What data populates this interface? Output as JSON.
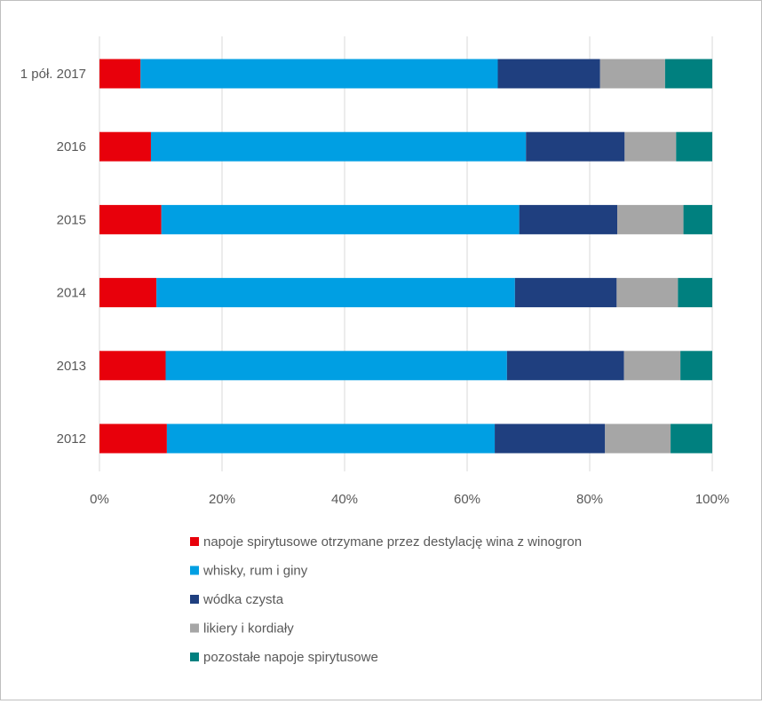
{
  "chart_data": {
    "type": "bar",
    "orientation": "horizontal",
    "stacked": "percent",
    "title": "",
    "xlabel": "",
    "ylabel": "",
    "xlim": [
      0,
      100
    ],
    "x_ticks": [
      "0%",
      "20%",
      "40%",
      "60%",
      "80%",
      "100%"
    ],
    "categories": [
      "1 pół. 2017",
      "2016",
      "2015",
      "2014",
      "2013",
      "2012"
    ],
    "grid": "vertical",
    "legend_position": "bottom",
    "series": [
      {
        "name": "napoje spirytusowe otrzymane przez destylację wina z winogron",
        "color": "#e8000b",
        "values": [
          6.7,
          8.4,
          10.1,
          9.3,
          10.8,
          11.0
        ]
      },
      {
        "name": "whisky, rum i giny",
        "color": "#009fe3",
        "values": [
          58.3,
          61.2,
          58.4,
          58.5,
          55.7,
          53.5
        ]
      },
      {
        "name": "wódka czysta",
        "color": "#1f3f7f",
        "values": [
          16.7,
          16.1,
          16.0,
          16.6,
          19.1,
          18.0
        ]
      },
      {
        "name": "likiery i kordiały",
        "color": "#a6a6a6",
        "values": [
          10.6,
          8.4,
          10.8,
          10.0,
          9.2,
          10.7
        ]
      },
      {
        "name": "pozostałe napoje spirytusowe",
        "color": "#00807f",
        "values": [
          7.7,
          5.9,
          4.7,
          5.6,
          5.2,
          6.8
        ]
      }
    ]
  }
}
